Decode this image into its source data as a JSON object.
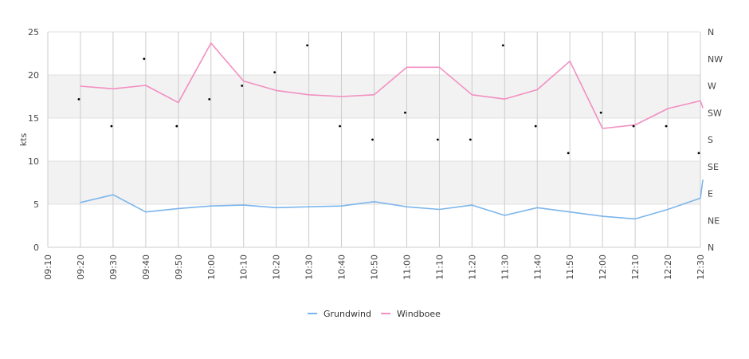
{
  "chart_data": {
    "type": "line",
    "ylabel": "kts",
    "ylim": [
      0,
      25
    ],
    "yticks": [
      "0",
      "5",
      "10",
      "15",
      "20",
      "25"
    ],
    "bands": [
      [
        5,
        10
      ],
      [
        15,
        20
      ]
    ],
    "x": [
      "09:10",
      "09:20",
      "09:30",
      "09:40",
      "09:50",
      "10:00",
      "10:10",
      "10:20",
      "10:30",
      "10:40",
      "10:50",
      "11:00",
      "11:10",
      "11:20",
      "11:30",
      "11:40",
      "11:50",
      "12:00",
      "12:10",
      "12:20",
      "12:30"
    ],
    "direction_axis": {
      "labels": [
        "N",
        "NE",
        "E",
        "SE",
        "S",
        "SW",
        "W",
        "NW",
        "N"
      ],
      "range": [
        0,
        360
      ]
    },
    "series": [
      {
        "name": "Grundwind",
        "color": "#7cb5ec",
        "points": [
          [
            "09:20",
            5.2
          ],
          [
            "09:30",
            6.1
          ],
          [
            "09:40",
            4.1
          ],
          [
            "09:50",
            4.5
          ],
          [
            "10:00",
            4.8
          ],
          [
            "10:10",
            4.9
          ],
          [
            "10:20",
            4.6
          ],
          [
            "10:30",
            4.7
          ],
          [
            "10:40",
            4.8
          ],
          [
            "10:50",
            5.3
          ],
          [
            "11:00",
            4.7
          ],
          [
            "11:10",
            4.4
          ],
          [
            "11:20",
            4.9
          ],
          [
            "11:30",
            3.7
          ],
          [
            "11:40",
            4.6
          ],
          [
            "11:50",
            4.1
          ],
          [
            "12:00",
            3.6
          ],
          [
            "12:10",
            3.3
          ],
          [
            "12:20",
            4.4
          ],
          [
            "12:30",
            5.7
          ],
          [
            "12:30",
            7.8
          ]
        ]
      },
      {
        "name": "Windboee",
        "color": "#f28fc1",
        "points": [
          [
            "09:20",
            18.7
          ],
          [
            "09:30",
            18.4
          ],
          [
            "09:40",
            18.8
          ],
          [
            "09:50",
            16.8
          ],
          [
            "10:00",
            23.7
          ],
          [
            "10:10",
            19.3
          ],
          [
            "10:20",
            18.2
          ],
          [
            "10:30",
            17.7
          ],
          [
            "10:40",
            17.5
          ],
          [
            "10:50",
            17.7
          ],
          [
            "11:00",
            20.9
          ],
          [
            "11:10",
            20.9
          ],
          [
            "11:20",
            17.7
          ],
          [
            "11:30",
            17.2
          ],
          [
            "11:40",
            18.3
          ],
          [
            "11:50",
            21.6
          ],
          [
            "12:00",
            13.8
          ],
          [
            "12:10",
            14.2
          ],
          [
            "12:20",
            16.1
          ],
          [
            "12:30",
            17.0
          ],
          [
            "12:30",
            16.2
          ]
        ]
      }
    ],
    "direction_points": [
      [
        "09:20",
        247.5
      ],
      [
        "09:30",
        202.5
      ],
      [
        "09:40",
        315
      ],
      [
        "09:50",
        202.5
      ],
      [
        "10:00",
        247.5
      ],
      [
        "10:10",
        270
      ],
      [
        "10:20",
        292.5
      ],
      [
        "10:30",
        337.5
      ],
      [
        "10:40",
        202.5
      ],
      [
        "10:50",
        180
      ],
      [
        "11:00",
        225
      ],
      [
        "11:10",
        180
      ],
      [
        "11:20",
        180
      ],
      [
        "11:30",
        337.5
      ],
      [
        "11:40",
        202.5
      ],
      [
        "11:50",
        157.5
      ],
      [
        "12:00",
        225
      ],
      [
        "12:10",
        202.5
      ],
      [
        "12:20",
        202.5
      ],
      [
        "12:30",
        157.5
      ]
    ],
    "legend": {
      "position": "bottom-center"
    }
  }
}
